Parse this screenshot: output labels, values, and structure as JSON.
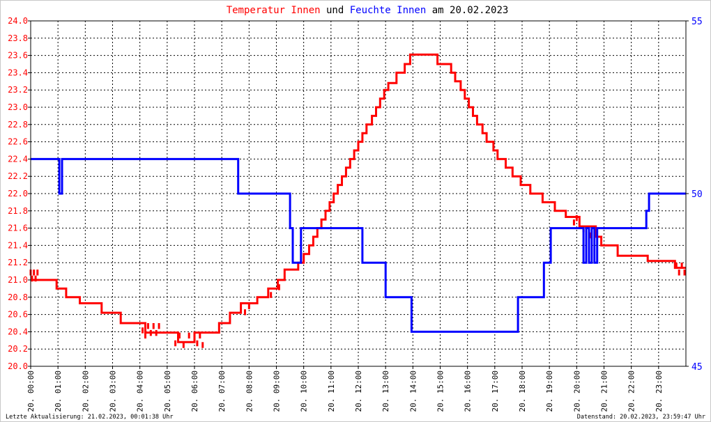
{
  "header": {
    "title_part1": "Temperatur Innen",
    "title_part2": "und",
    "title_part3": "Feuchte Innen",
    "title_part4": "am 20.02.2023"
  },
  "colors": {
    "temperature": "#ff0000",
    "humidity": "#0000ff",
    "grid": "#000000",
    "frame_border": "#c8c8c8"
  },
  "footer": {
    "left": "Letzte Aktualisierung: 21.02.2023, 00:01:38 Uhr",
    "right": "Datenstand: 20.02.2023, 23:59:47 Uhr"
  },
  "chart_data": {
    "type": "line",
    "title": "Temperatur Innen und Feuchte Innen am 20.02.2023",
    "grid": true,
    "line_style": "step",
    "x_unit": "hours",
    "xlim": [
      0,
      24
    ],
    "x_tick_labels": [
      "20. 00:00",
      "20. 01:00",
      "20. 02:00",
      "20. 03:00",
      "20. 04:00",
      "20. 05:00",
      "20. 06:00",
      "20. 07:00",
      "20. 08:00",
      "20. 09:00",
      "20. 10:00",
      "20. 11:00",
      "20. 12:00",
      "20. 13:00",
      "20. 14:00",
      "20. 15:00",
      "20. 16:00",
      "20. 17:00",
      "20. 18:00",
      "20. 19:00",
      "20. 20:00",
      "20. 21:00",
      "20. 22:00",
      "20. 23:00"
    ],
    "y_left": {
      "lim": [
        20.0,
        24.0
      ],
      "tick_labels": [
        "20.0",
        "20.2",
        "20.4",
        "20.6",
        "20.8",
        "21.0",
        "21.2",
        "21.4",
        "21.6",
        "21.8",
        "22.0",
        "22.2",
        "22.4",
        "22.6",
        "22.8",
        "23.0",
        "23.2",
        "23.4",
        "23.6",
        "23.8",
        "24.0"
      ]
    },
    "y_right": {
      "lim": [
        45,
        55
      ],
      "tick_labels": [
        "45",
        "50",
        "55"
      ]
    },
    "series": [
      {
        "name": "Temperatur Innen",
        "axis": "left",
        "color": "#ff0000",
        "points": [
          [
            0.0,
            21.0
          ],
          [
            0.95,
            21.0
          ],
          [
            0.95,
            20.9
          ],
          [
            1.3,
            20.9
          ],
          [
            1.3,
            20.8
          ],
          [
            1.8,
            20.8
          ],
          [
            1.8,
            20.73
          ],
          [
            2.6,
            20.73
          ],
          [
            2.6,
            20.62
          ],
          [
            3.3,
            20.62
          ],
          [
            3.3,
            20.5
          ],
          [
            4.2,
            20.5
          ],
          [
            4.2,
            20.39
          ],
          [
            5.4,
            20.39
          ],
          [
            5.4,
            20.28
          ],
          [
            6.0,
            20.28
          ],
          [
            6.0,
            20.39
          ],
          [
            6.9,
            20.39
          ],
          [
            6.9,
            20.5
          ],
          [
            7.3,
            20.5
          ],
          [
            7.3,
            20.62
          ],
          [
            7.7,
            20.62
          ],
          [
            7.7,
            20.73
          ],
          [
            8.3,
            20.73
          ],
          [
            8.3,
            20.8
          ],
          [
            8.7,
            20.8
          ],
          [
            8.7,
            20.9
          ],
          [
            9.05,
            20.9
          ],
          [
            9.05,
            21.0
          ],
          [
            9.3,
            21.0
          ],
          [
            9.3,
            21.12
          ],
          [
            9.8,
            21.12
          ],
          [
            9.8,
            21.2
          ],
          [
            10.0,
            21.2
          ],
          [
            10.0,
            21.3
          ],
          [
            10.2,
            21.3
          ],
          [
            10.2,
            21.4
          ],
          [
            10.35,
            21.4
          ],
          [
            10.35,
            21.5
          ],
          [
            10.5,
            21.5
          ],
          [
            10.5,
            21.6
          ],
          [
            10.65,
            21.6
          ],
          [
            10.65,
            21.7
          ],
          [
            10.8,
            21.7
          ],
          [
            10.8,
            21.8
          ],
          [
            10.95,
            21.8
          ],
          [
            10.95,
            21.9
          ],
          [
            11.1,
            21.9
          ],
          [
            11.1,
            22.0
          ],
          [
            11.25,
            22.0
          ],
          [
            11.25,
            22.1
          ],
          [
            11.4,
            22.1
          ],
          [
            11.4,
            22.2
          ],
          [
            11.55,
            22.2
          ],
          [
            11.55,
            22.3
          ],
          [
            11.7,
            22.3
          ],
          [
            11.7,
            22.4
          ],
          [
            11.85,
            22.4
          ],
          [
            11.85,
            22.5
          ],
          [
            12.0,
            22.5
          ],
          [
            12.0,
            22.6
          ],
          [
            12.15,
            22.6
          ],
          [
            12.15,
            22.7
          ],
          [
            12.3,
            22.7
          ],
          [
            12.3,
            22.8
          ],
          [
            12.5,
            22.8
          ],
          [
            12.5,
            22.9
          ],
          [
            12.65,
            22.9
          ],
          [
            12.65,
            23.0
          ],
          [
            12.8,
            23.0
          ],
          [
            12.8,
            23.1
          ],
          [
            12.95,
            23.1
          ],
          [
            12.95,
            23.2
          ],
          [
            13.1,
            23.2
          ],
          [
            13.1,
            23.28
          ],
          [
            13.4,
            23.28
          ],
          [
            13.4,
            23.4
          ],
          [
            13.7,
            23.4
          ],
          [
            13.7,
            23.5
          ],
          [
            13.9,
            23.5
          ],
          [
            13.9,
            23.61
          ],
          [
            14.9,
            23.61
          ],
          [
            14.9,
            23.5
          ],
          [
            15.4,
            23.5
          ],
          [
            15.4,
            23.4
          ],
          [
            15.55,
            23.4
          ],
          [
            15.55,
            23.3
          ],
          [
            15.75,
            23.3
          ],
          [
            15.75,
            23.2
          ],
          [
            15.9,
            23.2
          ],
          [
            15.9,
            23.1
          ],
          [
            16.05,
            23.1
          ],
          [
            16.05,
            23.0
          ],
          [
            16.2,
            23.0
          ],
          [
            16.2,
            22.9
          ],
          [
            16.35,
            22.9
          ],
          [
            16.35,
            22.8
          ],
          [
            16.55,
            22.8
          ],
          [
            16.55,
            22.7
          ],
          [
            16.7,
            22.7
          ],
          [
            16.7,
            22.6
          ],
          [
            16.95,
            22.6
          ],
          [
            16.95,
            22.5
          ],
          [
            17.1,
            22.5
          ],
          [
            17.1,
            22.4
          ],
          [
            17.4,
            22.4
          ],
          [
            17.4,
            22.3
          ],
          [
            17.65,
            22.3
          ],
          [
            17.65,
            22.2
          ],
          [
            17.95,
            22.2
          ],
          [
            17.95,
            22.1
          ],
          [
            18.3,
            22.1
          ],
          [
            18.3,
            22.0
          ],
          [
            18.75,
            22.0
          ],
          [
            18.75,
            21.9
          ],
          [
            19.2,
            21.9
          ],
          [
            19.2,
            21.8
          ],
          [
            19.6,
            21.8
          ],
          [
            19.6,
            21.73
          ],
          [
            20.1,
            21.73
          ],
          [
            20.1,
            21.62
          ],
          [
            20.7,
            21.62
          ],
          [
            20.7,
            21.5
          ],
          [
            20.9,
            21.5
          ],
          [
            20.9,
            21.4
          ],
          [
            21.5,
            21.4
          ],
          [
            21.5,
            21.28
          ],
          [
            22.6,
            21.28
          ],
          [
            22.6,
            21.22
          ],
          [
            23.6,
            21.22
          ],
          [
            23.6,
            21.14
          ],
          [
            24.0,
            21.14
          ]
        ],
        "noise_points": [
          [
            0.0,
            21.12
          ],
          [
            0.05,
            21.05
          ],
          [
            0.12,
            21.12
          ],
          [
            0.18,
            21.05
          ],
          [
            0.25,
            21.12
          ],
          [
            4.1,
            20.45
          ],
          [
            4.2,
            20.39
          ],
          [
            4.3,
            20.5
          ],
          [
            4.4,
            20.42
          ],
          [
            4.5,
            20.5
          ],
          [
            4.6,
            20.42
          ],
          [
            4.7,
            20.5
          ],
          [
            5.3,
            20.3
          ],
          [
            5.45,
            20.39
          ],
          [
            5.6,
            20.28
          ],
          [
            5.8,
            20.39
          ],
          [
            6.1,
            20.3
          ],
          [
            6.2,
            20.39
          ],
          [
            6.3,
            20.28
          ],
          [
            7.85,
            20.66
          ],
          [
            8.0,
            20.73
          ],
          [
            8.8,
            20.86
          ],
          [
            9.1,
            20.95
          ],
          [
            19.9,
            21.7
          ],
          [
            20.0,
            21.75
          ],
          [
            20.25,
            21.62
          ],
          [
            20.5,
            21.55
          ],
          [
            20.7,
            21.6
          ],
          [
            23.65,
            21.2
          ],
          [
            23.75,
            21.12
          ],
          [
            23.85,
            21.2
          ],
          [
            23.95,
            21.12
          ]
        ]
      },
      {
        "name": "Feuchte Innen",
        "axis": "right",
        "color": "#0000ff",
        "points": [
          [
            0.0,
            51.0
          ],
          [
            1.05,
            51.0
          ],
          [
            1.05,
            50.0
          ],
          [
            1.15,
            50.0
          ],
          [
            1.15,
            51.0
          ],
          [
            7.6,
            51.0
          ],
          [
            7.6,
            50.0
          ],
          [
            9.5,
            50.0
          ],
          [
            9.5,
            49.0
          ],
          [
            9.6,
            49.0
          ],
          [
            9.6,
            48.0
          ],
          [
            9.9,
            48.0
          ],
          [
            9.9,
            49.0
          ],
          [
            12.15,
            49.0
          ],
          [
            12.15,
            48.0
          ],
          [
            13.0,
            48.0
          ],
          [
            13.0,
            47.0
          ],
          [
            13.95,
            47.0
          ],
          [
            13.95,
            46.0
          ],
          [
            17.85,
            46.0
          ],
          [
            17.85,
            47.0
          ],
          [
            18.8,
            47.0
          ],
          [
            18.8,
            48.0
          ],
          [
            19.05,
            48.0
          ],
          [
            19.05,
            49.0
          ],
          [
            20.25,
            49.0
          ],
          [
            20.25,
            48.0
          ],
          [
            20.35,
            48.0
          ],
          [
            20.35,
            49.0
          ],
          [
            20.45,
            49.0
          ],
          [
            20.45,
            48.0
          ],
          [
            20.55,
            48.0
          ],
          [
            20.55,
            49.0
          ],
          [
            20.65,
            49.0
          ],
          [
            20.65,
            48.0
          ],
          [
            20.75,
            48.0
          ],
          [
            20.75,
            49.0
          ],
          [
            22.55,
            49.0
          ],
          [
            22.55,
            49.5
          ],
          [
            22.65,
            49.5
          ],
          [
            22.65,
            50.0
          ],
          [
            24.0,
            50.0
          ]
        ]
      }
    ]
  }
}
